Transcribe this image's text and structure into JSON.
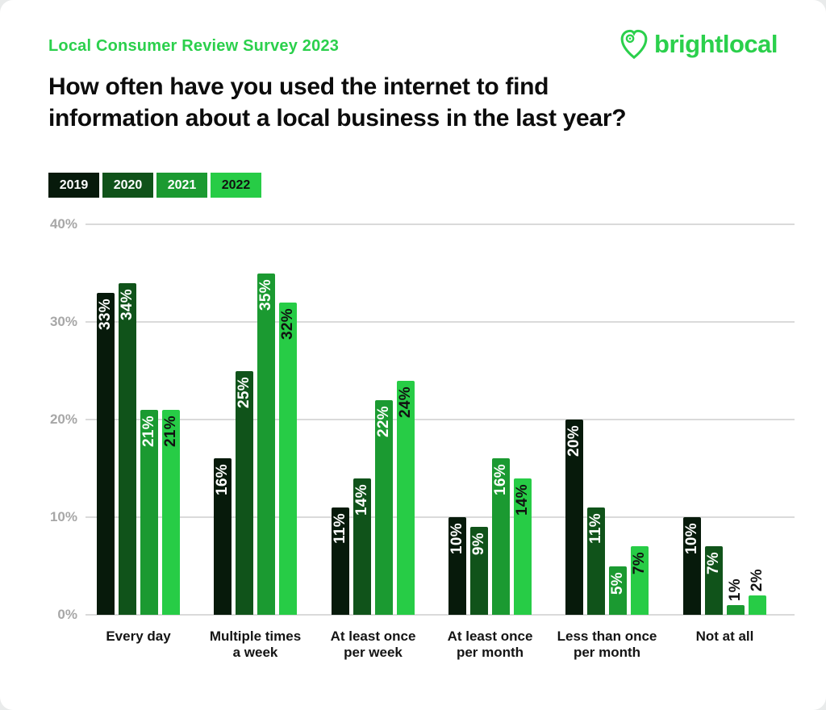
{
  "header": {
    "survey_label": "Local Consumer Review Survey 2023",
    "logo_text": "brightlocal",
    "brand_color": "#2bd04c"
  },
  "title": "How often have you used the internet to find\ninformation about a local business in the last year?",
  "chart_data": {
    "type": "bar",
    "title": "How often have you used the internet to find information about a local business in the last year?",
    "categories": [
      "Every day",
      "Multiple times\na week",
      "At least once\nper week",
      "At least once\nper month",
      "Less than once\nper month",
      "Not at all"
    ],
    "series": [
      {
        "name": "2019",
        "color": "#071a0b",
        "label_color": "#ffffff",
        "values": [
          33,
          16,
          11,
          10,
          20,
          10
        ]
      },
      {
        "name": "2020",
        "color": "#10531a",
        "label_color": "#ffffff",
        "values": [
          34,
          25,
          14,
          9,
          11,
          7
        ]
      },
      {
        "name": "2021",
        "color": "#1b9a31",
        "label_color": "#ffffff",
        "values": [
          21,
          35,
          22,
          16,
          5,
          1
        ]
      },
      {
        "name": "2022",
        "color": "#27cc46",
        "label_color": "#111111",
        "values": [
          21,
          32,
          24,
          14,
          7,
          2
        ]
      }
    ],
    "value_suffix": "%",
    "ylim": [
      0,
      40
    ],
    "yticks": [
      0,
      10,
      20,
      30,
      40
    ],
    "ytick_labels": [
      "0%",
      "10%",
      "20%",
      "30%",
      "40%"
    ],
    "grid": true,
    "legend_position": "top-left",
    "outside_label_color": "#111111"
  },
  "axis": {
    "grid_color": "#dadada",
    "tick_color": "#a7a7a7"
  }
}
